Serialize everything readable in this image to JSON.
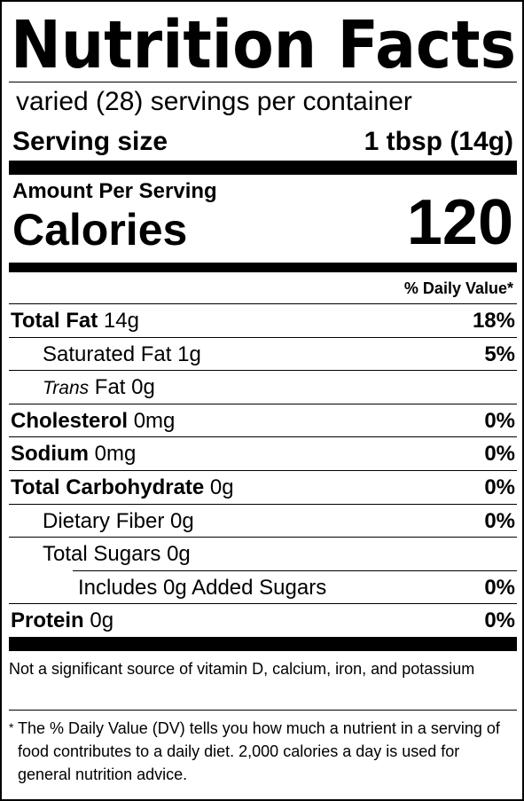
{
  "title": "Nutrition Facts",
  "servings": "varied (28) servings per container",
  "serving_size": {
    "label": "Serving size",
    "value": "1 tbsp (14g)"
  },
  "amount_per_serving": "Amount Per Serving",
  "calories": {
    "label": "Calories",
    "value": 120
  },
  "dv_header": "% Daily Value*",
  "nutrients": [
    {
      "name": "Total Fat",
      "amount": "14g",
      "dv": "18%",
      "bold": true,
      "indent": 0
    },
    {
      "name": "Saturated Fat",
      "amount": "1g",
      "dv": "5%",
      "bold": false,
      "indent": 1
    },
    {
      "prefix": "Trans",
      "name": "Fat",
      "amount": "0g",
      "bold": false,
      "indent": 1
    },
    {
      "name": "Cholesterol",
      "amount": "0mg",
      "dv": "0%",
      "bold": true,
      "indent": 0
    },
    {
      "name": "Sodium",
      "amount": "0mg",
      "dv": "0%",
      "bold": true,
      "indent": 0
    },
    {
      "name": "Total Carbohydrate",
      "amount": "0g",
      "dv": "0%",
      "bold": true,
      "indent": 0
    },
    {
      "name": "Dietary Fiber",
      "amount": "0g",
      "dv": "0%",
      "bold": false,
      "indent": 1
    },
    {
      "name": "Total Sugars",
      "amount": "0g",
      "bold": false,
      "indent": 1
    },
    {
      "name": "Includes 0g Added Sugars",
      "dv": "0%",
      "bold": false,
      "indent": 2
    },
    {
      "name": "Protein",
      "amount": "0g",
      "dv": "0%",
      "bold": true,
      "indent": 0
    }
  ],
  "footnote_vitamins": "Not a significant source of vitamin D, calcium, iron, and potassium",
  "footnote_marker": "*",
  "footnote_dv": "The % Daily Value (DV) tells you how much a nutrient in a serving of food contributes to a daily diet. 2,000 calories a day is used for general nutrition advice."
}
